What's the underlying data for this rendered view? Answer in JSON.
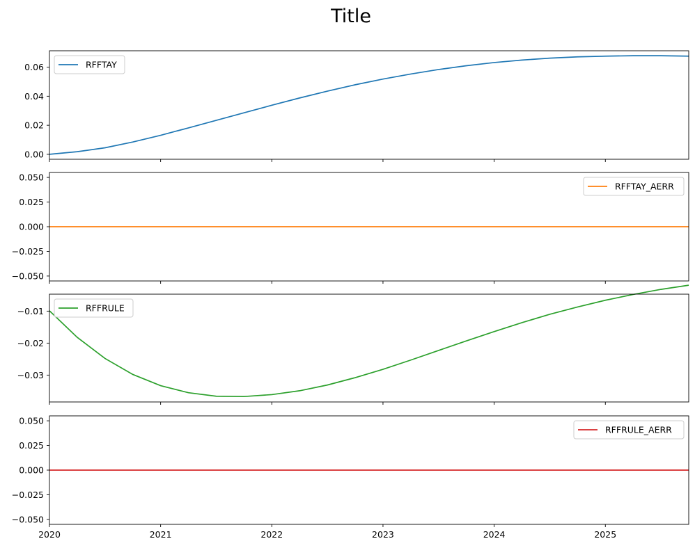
{
  "title": "Title",
  "chart_data": [
    {
      "type": "line",
      "series": [
        {
          "name": "RFFTAY",
          "color": "#1f77b4"
        }
      ],
      "x": [
        2020.0,
        2020.25,
        2020.5,
        2020.75,
        2021.0,
        2021.25,
        2021.5,
        2021.75,
        2022.0,
        2022.25,
        2022.5,
        2022.75,
        2023.0,
        2023.25,
        2023.5,
        2023.75,
        2024.0,
        2024.25,
        2024.5,
        2024.75,
        2025.0,
        2025.25,
        2025.5,
        2025.75
      ],
      "y": [
        0.0,
        0.0018,
        0.0045,
        0.0085,
        0.0131,
        0.0182,
        0.0234,
        0.0286,
        0.0338,
        0.0388,
        0.0435,
        0.0479,
        0.0518,
        0.0553,
        0.0584,
        0.061,
        0.0632,
        0.0649,
        0.0662,
        0.0671,
        0.0676,
        0.0679,
        0.0679,
        0.0676
      ],
      "ylim": [
        -0.0034,
        0.0713
      ],
      "yticks": [
        0.0,
        0.02,
        0.04,
        0.06
      ],
      "ytick_labels": [
        "0.00",
        "0.02",
        "0.04",
        "0.06"
      ],
      "legend_loc": "upper left",
      "grid": false
    },
    {
      "type": "line",
      "series": [
        {
          "name": "RFFTAY_AERR",
          "color": "#ff7f0e"
        }
      ],
      "x": [
        2020.0,
        2025.75
      ],
      "y": [
        0,
        0
      ],
      "ylim": [
        -0.055,
        0.055
      ],
      "yticks": [
        -0.05,
        -0.025,
        0.0,
        0.025,
        0.05
      ],
      "ytick_labels": [
        "−0.050",
        "−0.025",
        "0.000",
        "0.025",
        "0.050"
      ],
      "legend_loc": "upper right",
      "grid": false
    },
    {
      "type": "line",
      "series": [
        {
          "name": "RFFRULE",
          "color": "#2ca02c"
        }
      ],
      "x": [
        2020.0,
        2020.25,
        2020.5,
        2020.75,
        2021.0,
        2021.25,
        2021.5,
        2021.75,
        2022.0,
        2022.25,
        2022.5,
        2022.75,
        2023.0,
        2023.25,
        2023.5,
        2023.75,
        2024.0,
        2024.25,
        2024.5,
        2024.75,
        2025.0,
        2025.25,
        2025.5,
        2025.75
      ],
      "y": [
        -0.0099,
        -0.0182,
        -0.0248,
        -0.0298,
        -0.0333,
        -0.0355,
        -0.0366,
        -0.0367,
        -0.0361,
        -0.0349,
        -0.0331,
        -0.0308,
        -0.0282,
        -0.0253,
        -0.0223,
        -0.0193,
        -0.0164,
        -0.0136,
        -0.011,
        -0.0087,
        -0.0066,
        -0.0048,
        -0.0032,
        -0.0019
      ],
      "ylim": [
        -0.0384,
        -0.0047
      ],
      "yticks": [
        -0.03,
        -0.02,
        -0.01
      ],
      "ytick_labels": [
        "−0.03",
        "−0.02",
        "−0.01"
      ],
      "legend_loc": "upper left",
      "grid": false
    },
    {
      "type": "line",
      "series": [
        {
          "name": "RFFRULE_AERR",
          "color": "#d62728"
        }
      ],
      "x": [
        2020.0,
        2025.75
      ],
      "y": [
        0,
        0
      ],
      "ylim": [
        -0.055,
        0.055
      ],
      "yticks": [
        -0.05,
        -0.025,
        0.0,
        0.025,
        0.05
      ],
      "ytick_labels": [
        "−0.050",
        "−0.025",
        "0.000",
        "0.025",
        "0.050"
      ],
      "legend_loc": "upper right",
      "grid": false
    }
  ],
  "shared_x": {
    "xlim": [
      2020.0,
      2025.75
    ],
    "xticks": [
      2020,
      2021,
      2022,
      2023,
      2024,
      2025
    ],
    "xtick_labels": [
      "2020",
      "2021",
      "2022",
      "2023",
      "2024",
      "2025"
    ]
  }
}
